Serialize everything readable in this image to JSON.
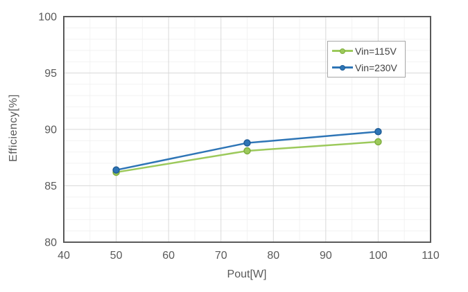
{
  "chart_data": {
    "type": "line",
    "title": "",
    "xlabel": "Pout[W]",
    "ylabel": "Efficiency[%]",
    "x": [
      50,
      75,
      100
    ],
    "series": [
      {
        "name": "Vin=115V",
        "values": [
          86.2,
          88.1,
          88.9
        ],
        "color": "#9cc95b",
        "marker_stroke": "#7fae3e"
      },
      {
        "name": "Vin=230V",
        "values": [
          86.4,
          88.8,
          89.8
        ],
        "color": "#2e75b6",
        "marker_stroke": "#1f5c96"
      }
    ],
    "xlim": [
      40,
      110
    ],
    "ylim": [
      80,
      100
    ],
    "x_ticks": [
      40,
      50,
      60,
      70,
      80,
      90,
      100,
      110
    ],
    "y_ticks": [
      80,
      85,
      90,
      95,
      100
    ],
    "x_minor_step": 5,
    "y_minor_step": 1,
    "grid": "major and minor gridlines on",
    "legend_position": "upper right, framed box",
    "colors": {
      "plot_border": "#595959",
      "major_gridline": "#d9d9d9",
      "minor_gridline": "#f2f2f2",
      "tick_label_text": "#595959",
      "axis_title_text": "#595959",
      "legend_text": "#404040",
      "legend_border": "#a6a6a6",
      "background": "#ffffff"
    }
  }
}
